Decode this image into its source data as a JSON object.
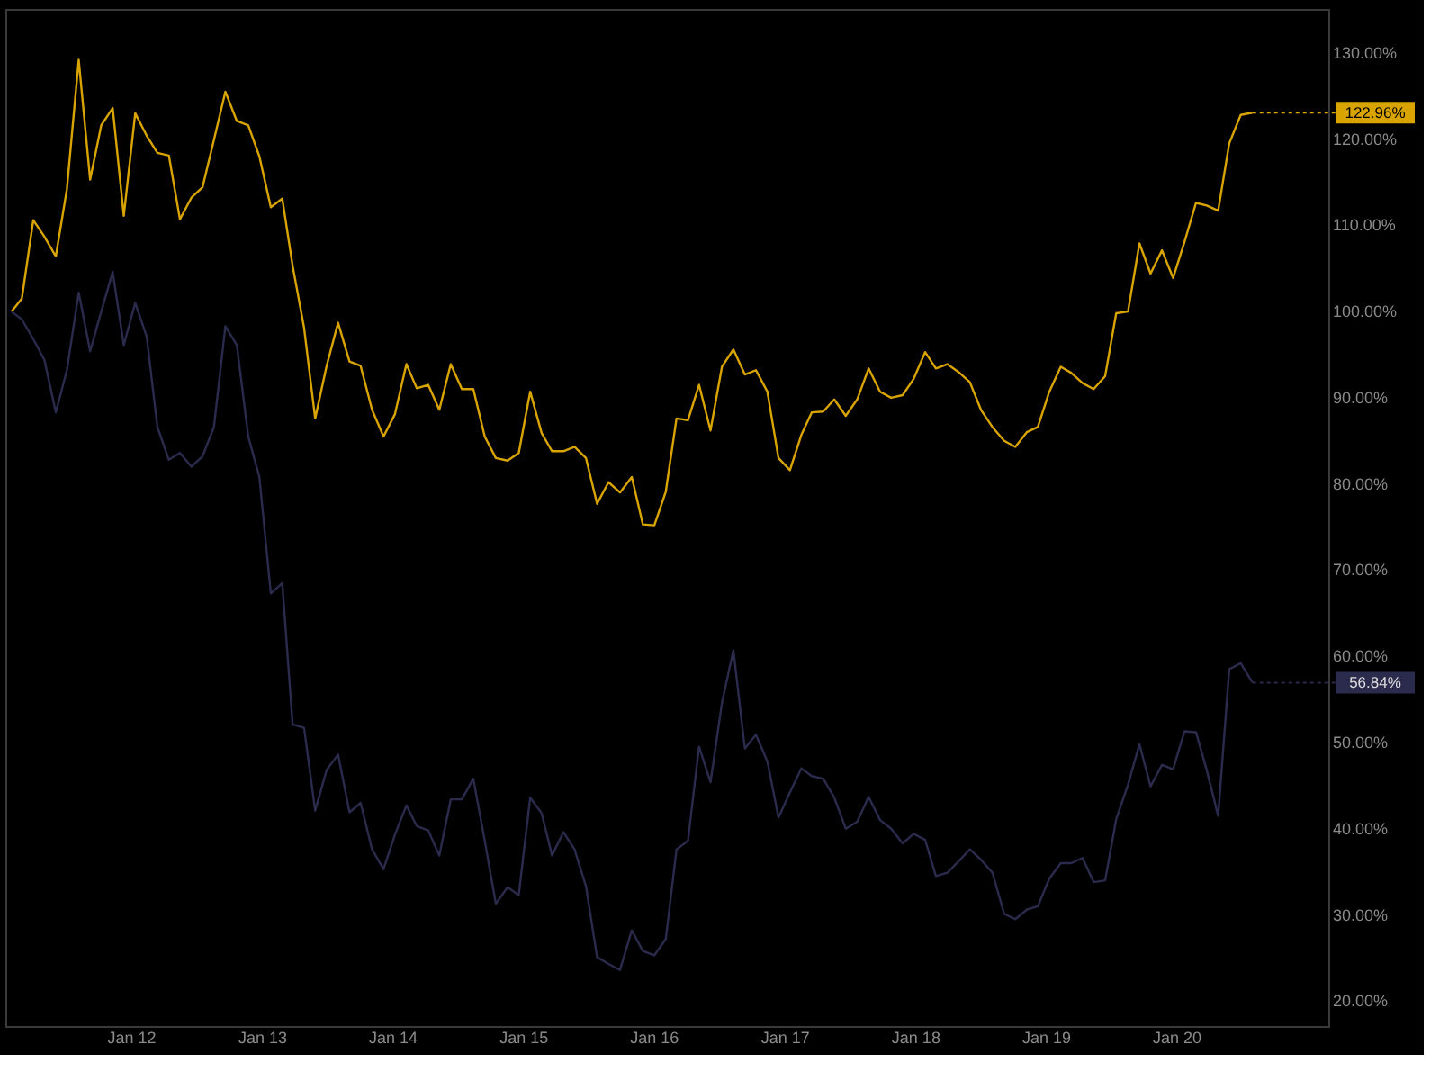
{
  "chart_data": {
    "type": "line",
    "x": [
      "2011-02-01",
      "2011-03-02",
      "2011-04-03",
      "2011-05-04",
      "2011-06-05",
      "2011-07-06",
      "2011-08-08",
      "2011-09-09",
      "2011-10-10",
      "2011-11-11",
      "2011-12-12",
      "2012-01-13",
      "2012-02-14",
      "2012-03-15",
      "2012-04-16",
      "2012-05-17",
      "2012-06-18",
      "2012-07-19",
      "2012-08-20",
      "2012-09-21",
      "2012-10-23",
      "2012-11-24",
      "2012-12-25",
      "2013-01-26",
      "2013-02-27",
      "2013-03-28",
      "2013-04-29",
      "2013-05-30",
      "2013-07-01",
      "2013-08-02",
      "2013-09-03",
      "2013-10-04",
      "2013-11-05",
      "2013-12-07",
      "2014-01-08",
      "2014-02-09",
      "2014-03-10",
      "2014-04-11",
      "2014-05-12",
      "2014-06-13",
      "2014-07-14",
      "2014-08-15",
      "2014-09-16",
      "2014-10-17",
      "2014-11-19",
      "2014-12-20",
      "2015-01-21",
      "2015-02-22",
      "2015-03-23",
      "2015-04-24",
      "2015-05-25",
      "2015-06-26",
      "2015-07-27",
      "2015-08-28",
      "2015-09-29",
      "2015-11-01",
      "2015-12-02",
      "2016-01-03",
      "2016-02-04",
      "2016-03-05",
      "2016-04-06",
      "2016-05-07",
      "2016-06-08",
      "2016-07-10",
      "2016-08-11",
      "2016-09-12",
      "2016-10-13",
      "2016-11-14",
      "2016-12-15",
      "2017-01-16",
      "2017-02-17",
      "2017-03-18",
      "2017-04-19",
      "2017-05-20",
      "2017-06-21",
      "2017-07-23",
      "2017-08-24",
      "2017-09-25",
      "2017-10-26",
      "2017-11-27",
      "2017-12-28",
      "2018-01-29",
      "2018-02-28",
      "2018-04-01",
      "2018-05-02",
      "2018-06-03",
      "2018-07-04",
      "2018-08-05",
      "2018-09-07",
      "2018-10-08",
      "2018-11-09",
      "2018-12-10",
      "2019-01-11",
      "2019-02-12",
      "2019-03-13",
      "2019-04-14",
      "2019-05-15",
      "2019-06-16",
      "2019-07-17",
      "2019-08-19",
      "2019-09-20",
      "2019-10-21",
      "2019-11-22",
      "2019-12-23",
      "2020-01-24",
      "2020-02-25",
      "2020-03-26",
      "2020-04-27",
      "2020-05-28",
      "2020-06-29",
      "2020-08-01"
    ],
    "series": [
      {
        "color": "#d9a400",
        "values": [
          99.9,
          101.4,
          110.5,
          108.6,
          106.3,
          114.1,
          129.1,
          115.2,
          121.5,
          123.5,
          111.0,
          122.9,
          120.3,
          118.3,
          118.0,
          110.6,
          113.1,
          114.3,
          119.8,
          125.4,
          122.0,
          121.5,
          117.9,
          112.0,
          113.0,
          105.2,
          98.0,
          87.5,
          93.6,
          98.6,
          94.1,
          93.6,
          88.5,
          85.4,
          88.0,
          93.8,
          91.0,
          91.4,
          88.5,
          93.8,
          90.9,
          90.9,
          85.4,
          82.9,
          82.6,
          83.5,
          90.6,
          85.8,
          83.7,
          83.7,
          84.2,
          82.9,
          77.6,
          80.1,
          78.9,
          80.7,
          75.2,
          75.1,
          79.0,
          87.5,
          87.3,
          91.4,
          86.1,
          93.5,
          95.5,
          92.6,
          93.1,
          90.6,
          82.9,
          81.5,
          85.6,
          88.2,
          88.3,
          89.7,
          87.8,
          89.7,
          93.3,
          90.6,
          89.9,
          90.2,
          92.1,
          95.2,
          93.3,
          93.8,
          92.9,
          91.7,
          88.5,
          86.5,
          84.9,
          84.2,
          85.9,
          86.5,
          90.6,
          93.5,
          92.8,
          91.6,
          90.9,
          92.4,
          99.7,
          99.9,
          107.8,
          104.3,
          107.0,
          103.8,
          108.0,
          112.5,
          112.2,
          111.6,
          119.4,
          122.7,
          122.96
        ]
      },
      {
        "color": "#2b2b4d",
        "values": [
          99.9,
          99.0,
          96.7,
          94.3,
          88.2,
          93.1,
          102.1,
          95.3,
          99.9,
          104.5,
          96.0,
          100.9,
          97.0,
          86.5,
          82.7,
          83.5,
          81.9,
          83.1,
          86.5,
          98.2,
          96.0,
          85.4,
          80.7,
          67.2,
          68.4,
          52.0,
          51.6,
          42.0,
          46.7,
          48.5,
          41.8,
          42.9,
          37.5,
          35.2,
          39.2,
          42.6,
          40.2,
          39.7,
          36.8,
          43.3,
          43.3,
          45.7,
          38.5,
          31.2,
          33.1,
          32.2,
          43.5,
          41.7,
          36.8,
          39.5,
          37.5,
          33.2,
          25.0,
          24.2,
          23.5,
          28.1,
          25.7,
          25.2,
          27.1,
          37.5,
          38.5,
          49.4,
          45.3,
          54.5,
          60.6,
          49.2,
          50.8,
          47.7,
          41.2,
          44.1,
          46.9,
          46.0,
          45.7,
          43.5,
          39.9,
          40.7,
          43.6,
          40.9,
          39.9,
          38.2,
          39.3,
          38.6,
          34.4,
          34.8,
          36.1,
          37.5,
          36.3,
          34.8,
          30.0,
          29.4,
          30.5,
          30.9,
          34.1,
          35.9,
          35.9,
          36.5,
          33.7,
          33.9,
          41.0,
          45.0,
          49.7,
          44.8,
          47.3,
          46.8,
          51.2,
          51.1,
          46.7,
          41.4,
          58.4,
          59.1,
          56.84
        ]
      }
    ],
    "annotations": [
      {
        "text": "122.96%",
        "x": "2020-08-01",
        "y": 122.96
      },
      {
        "text": "56.84%",
        "x": "2020-08-01",
        "y": 56.84
      }
    ],
    "xlim": [
      "2011-01-15",
      "2021-03-01"
    ],
    "xticks": [
      {
        "value": "2012-01",
        "label": "Jan 12"
      },
      {
        "value": "2013-01",
        "label": "Jan 13"
      },
      {
        "value": "2014-01",
        "label": "Jan 14"
      },
      {
        "value": "2015-01",
        "label": "Jan 15"
      },
      {
        "value": "2016-01",
        "label": "Jan 16"
      },
      {
        "value": "2017-01",
        "label": "Jan 17"
      },
      {
        "value": "2018-01",
        "label": "Jan 18"
      },
      {
        "value": "2019-01",
        "label": "Jan 19"
      },
      {
        "value": "2020-01",
        "label": "Jan 20"
      }
    ],
    "ylim": [
      17,
      135
    ],
    "yticks": [
      {
        "value": 20,
        "label": "20.00%"
      },
      {
        "value": 30,
        "label": "30.00%"
      },
      {
        "value": 40,
        "label": "40.00%"
      },
      {
        "value": 50,
        "label": "50.00%"
      },
      {
        "value": 60,
        "label": "60.00%"
      },
      {
        "value": 70,
        "label": "70.00%"
      },
      {
        "value": 80,
        "label": "80.00%"
      },
      {
        "value": 90,
        "label": "90.00%"
      },
      {
        "value": 100,
        "label": "100.00%"
      },
      {
        "value": 110,
        "label": "110.00%"
      },
      {
        "value": 120,
        "label": "120.00%"
      },
      {
        "value": 130,
        "label": "130.00%"
      }
    ],
    "grid": false,
    "marker": "none",
    "line_style": "solid"
  }
}
